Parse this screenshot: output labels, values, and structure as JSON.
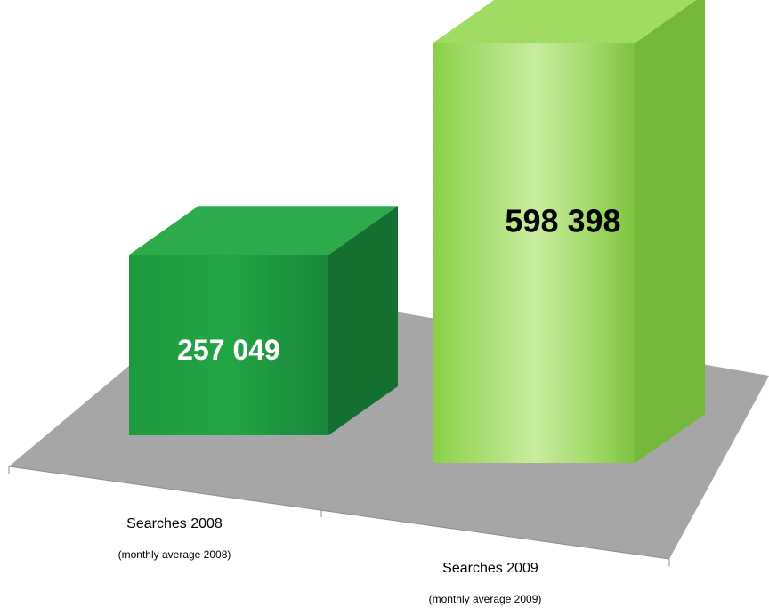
{
  "chart_data": {
    "type": "bar",
    "categories": [
      "Searches 2008",
      "Searches 2009"
    ],
    "category_sublabels": [
      "(monthly average 2008)",
      "(monthly average 2009)"
    ],
    "values": [
      257049,
      598398
    ],
    "data_labels": [
      "257 049",
      "598 398"
    ],
    "colors": [
      "#1f9a3e",
      "#8fd24f"
    ],
    "label_colors": [
      "#ffffff",
      "#000000"
    ],
    "floor_color": "#a6a6a6",
    "grid": false,
    "legend": "none",
    "style": "3d-column"
  }
}
